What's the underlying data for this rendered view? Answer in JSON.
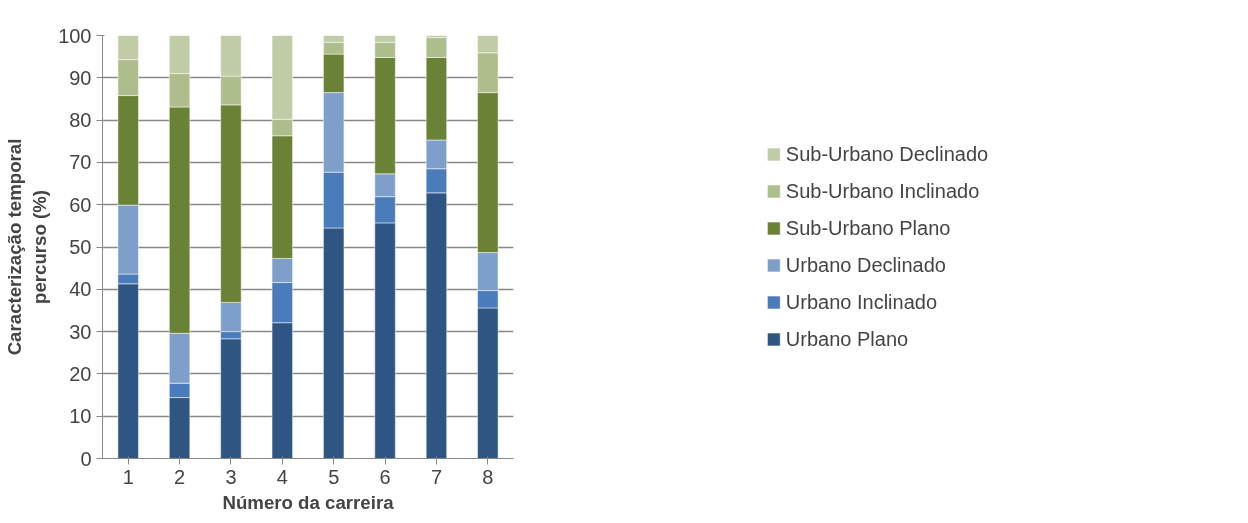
{
  "chart_data": {
    "type": "bar",
    "stacked": true,
    "xlabel": "Número da carreira",
    "ylabel": "Caracterização temporal\npercurso (%)",
    "categories": [
      "1",
      "2",
      "3",
      "4",
      "5",
      "6",
      "7",
      "8"
    ],
    "series": [
      {
        "name": "Urbano Plano",
        "color": "#2f5583",
        "values": [
          41.3,
          14.4,
          28.3,
          32.1,
          54.5,
          55.7,
          62.8,
          35.6
        ]
      },
      {
        "name": "Urbano Inclinado",
        "color": "#4a7bbb",
        "values": [
          2.3,
          3.4,
          1.7,
          9.5,
          13.2,
          6.2,
          5.7,
          4.1
        ]
      },
      {
        "name": "Urbano Declinado",
        "color": "#7f9fcb",
        "values": [
          16.3,
          11.8,
          6.9,
          5.7,
          18.8,
          5.4,
          6.8,
          9.0
        ]
      },
      {
        "name": "Sub-Urbano Plano",
        "color": "#6a8236",
        "values": [
          25.9,
          53.5,
          46.7,
          29.0,
          9.1,
          27.5,
          19.5,
          37.8
        ]
      },
      {
        "name": "Sub-Urbano Inclinado",
        "color": "#adbd8b",
        "values": [
          8.5,
          7.9,
          6.8,
          3.9,
          2.8,
          3.6,
          4.7,
          9.4
        ]
      },
      {
        "name": "Sub-Urbano Declinado",
        "color": "#c0cca6",
        "values": [
          5.7,
          9.0,
          9.6,
          19.8,
          1.6,
          1.6,
          0.5,
          4.1
        ]
      }
    ],
    "ylim": [
      0,
      100
    ],
    "yticks": [
      0,
      10,
      20,
      30,
      40,
      50,
      60,
      70,
      80,
      90,
      100
    ],
    "grid": "y",
    "legend": "right"
  }
}
